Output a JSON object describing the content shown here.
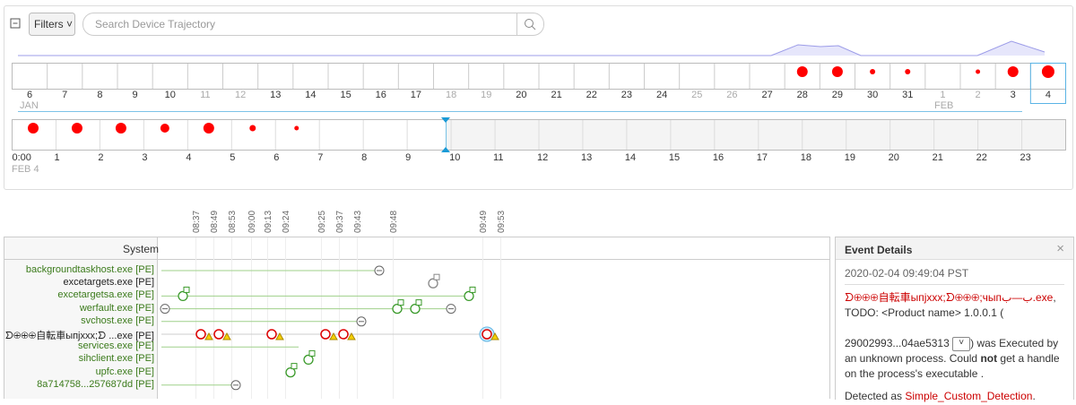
{
  "toolbar": {
    "filters": "Filters",
    "search_placeholder": "Search Device Trajectory"
  },
  "day_timeline": {
    "days": [
      "6",
      "7",
      "8",
      "9",
      "10",
      "11",
      "12",
      "13",
      "14",
      "15",
      "16",
      "17",
      "18",
      "19",
      "20",
      "21",
      "22",
      "23",
      "24",
      "25",
      "26",
      "27",
      "28",
      "29",
      "30",
      "31",
      "1",
      "2",
      "3",
      "4"
    ],
    "months": [
      "JAN",
      "FEB"
    ]
  },
  "hour_timeline": {
    "hours": [
      "0:00",
      "1",
      "2",
      "3",
      "4",
      "5",
      "6",
      "7",
      "8",
      "9",
      "10",
      "11",
      "12",
      "13",
      "14",
      "15",
      "16",
      "17",
      "18",
      "19",
      "20",
      "21",
      "22",
      "23"
    ],
    "date": "FEB 4"
  },
  "trajectory": {
    "header": "System",
    "times": [
      "08:37",
      "08:49",
      "08:53",
      "09:00",
      "09:13",
      "09:24",
      "09:25",
      "09:37",
      "09:43",
      "09:48",
      "09:49",
      "09:53"
    ],
    "processes": [
      {
        "name": "backgroundtaskhost.exe [PE]"
      },
      {
        "name": "excetargets.exe [PE]"
      },
      {
        "name": "excetargetsa.exe [PE]"
      },
      {
        "name": "werfault.exe [PE]"
      },
      {
        "name": "svchost.exe [PE]"
      },
      {
        "name": "ᗤ⊕⊕⊕自転車ыпjxxx;ᗤ ...exe [PE]"
      },
      {
        "name": "services.exe [PE]"
      },
      {
        "name": "sihclient.exe [PE]"
      },
      {
        "name": "upfc.exe [PE]"
      },
      {
        "name": "8a714758...257687dd [PE]"
      }
    ]
  },
  "event_details": {
    "title": "Event Details",
    "close": "×",
    "timestamp": "2020-02-04 09:49:04 PST",
    "file": "ᗤ⊕⊕⊕自転車ыпjxxx;ᗤ⊕⊕⊕;чыпب—ب.exe",
    "text1": ", TODO: <Product name> 1.0.0.1 (",
    "hash": "29002993...04ae5313",
    "text2": ") was Executed by an unknown process. Could ",
    "emphasis": "not",
    "text3": " get a handle on the process's executable .",
    "detected_prefix": "Detected as ",
    "detection": "Simple_Custom_Detection",
    "detected_suffix": "."
  }
}
